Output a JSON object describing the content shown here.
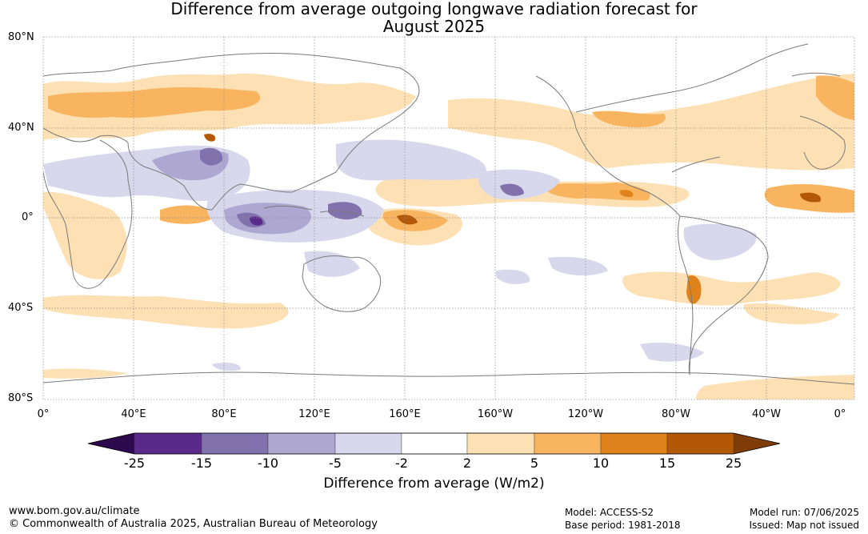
{
  "title": {
    "line1": "Difference from average outgoing longwave radiation forecast for",
    "line2": "August 2025"
  },
  "map": {
    "lat_labels": [
      "80°N",
      "40°N",
      "0°",
      "40°S",
      "80°S"
    ],
    "lon_labels": [
      "0°",
      "40°E",
      "80°E",
      "120°E",
      "160°E",
      "160°W",
      "120°W",
      "80°W",
      "40°W",
      "0°"
    ]
  },
  "colorbar": {
    "ticks": [
      "-25",
      "-15",
      "-10",
      "-5",
      "-2",
      "2",
      "5",
      "10",
      "15",
      "25"
    ],
    "colors": [
      "#2d0a4e",
      "#5a2a8a",
      "#8172ae",
      "#aea7d2",
      "#d8d8ec",
      "#ffffff",
      "#fde0b3",
      "#f9b460",
      "#e0821c",
      "#b35806",
      "#7f3b08"
    ],
    "label": "Difference from average (W/m2)"
  },
  "footer": {
    "website": "www.bom.gov.au/climate",
    "copyright": "© Commonwealth of Australia 2025, Australian Bureau of Meteorology",
    "model": "Model: ACCESS-S2",
    "base_period": "Base period: 1981-2018",
    "model_run": "Model run: 07/06/2025",
    "issued": "Issued: Map not issued"
  }
}
